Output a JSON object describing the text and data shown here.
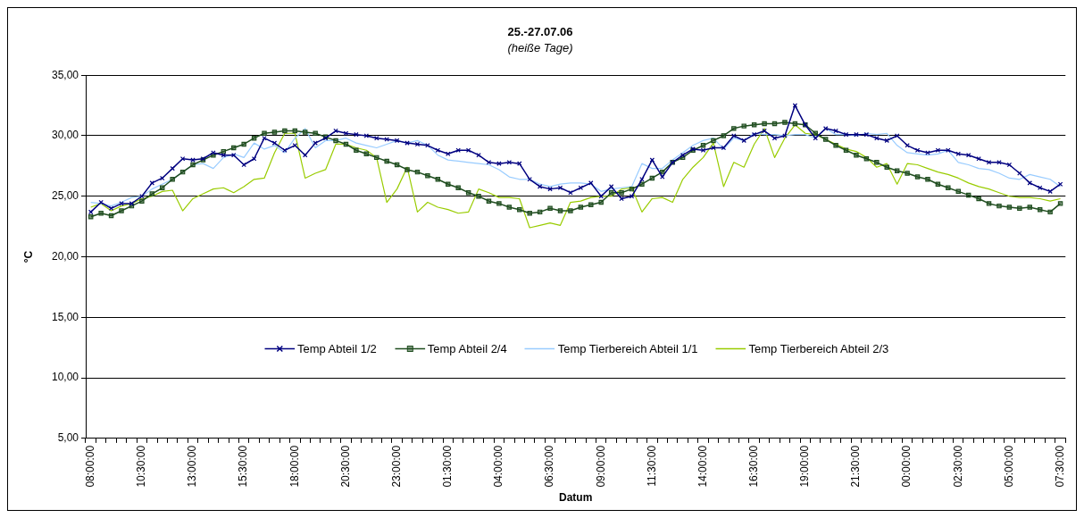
{
  "chart_data": {
    "type": "line",
    "title": "25.-27.07.06",
    "subtitle": "(heiße Tage)",
    "xlabel": "Datum",
    "ylabel": "°C",
    "categories": [
      "08:00:00",
      null,
      null,
      null,
      null,
      "10:30:00",
      null,
      null,
      null,
      null,
      "13:00:00",
      null,
      null,
      null,
      null,
      "15:30:00",
      null,
      null,
      null,
      null,
      "18:00:00",
      null,
      null,
      null,
      null,
      "20:30:00",
      null,
      null,
      null,
      null,
      "23:00:00",
      null,
      null,
      null,
      null,
      "01:30:00",
      null,
      null,
      null,
      null,
      "04:00:00",
      null,
      null,
      null,
      null,
      "06:30:00",
      null,
      null,
      null,
      null,
      "09:00:00",
      null,
      null,
      null,
      null,
      "11:30:00",
      null,
      null,
      null,
      null,
      "14:00:00",
      null,
      null,
      null,
      null,
      "16:30:00",
      null,
      null,
      null,
      null,
      "19:00:00",
      null,
      null,
      null,
      null,
      "21:30:00",
      null,
      null,
      null,
      null,
      "00:00:00",
      null,
      null,
      null,
      null,
      "02:30:00",
      null,
      null,
      null,
      null,
      "05:00:00",
      null,
      null,
      null,
      null,
      "07:30:00"
    ],
    "ylim": [
      5,
      35
    ],
    "yticks": [
      {
        "value": 5,
        "label": "5,00"
      },
      {
        "value": 10,
        "label": "10,00"
      },
      {
        "value": 15,
        "label": "15,00"
      },
      {
        "value": 20,
        "label": "20,00"
      },
      {
        "value": 25,
        "label": "25,00"
      },
      {
        "value": 30,
        "label": "30,00"
      },
      {
        "value": 35,
        "label": "35,00"
      }
    ],
    "grid": "y",
    "legend": "center",
    "series": [
      {
        "name": "Temp Abteil 1/2",
        "color": "#000080",
        "marker": "cross",
        "values": [
          23.7,
          24.5,
          24.0,
          24.4,
          24.4,
          25.0,
          26.1,
          26.5,
          27.3,
          28.1,
          28.0,
          28.1,
          28.6,
          28.4,
          28.4,
          27.6,
          28.1,
          29.8,
          29.4,
          28.8,
          29.2,
          28.4,
          29.4,
          29.8,
          30.4,
          30.2,
          30.1,
          30.0,
          29.8,
          29.7,
          29.6,
          29.4,
          29.3,
          29.2,
          28.8,
          28.5,
          28.8,
          28.8,
          28.4,
          27.8,
          27.7,
          27.8,
          27.7,
          26.4,
          25.8,
          25.6,
          25.7,
          25.3,
          25.7,
          26.1,
          25.0,
          25.8,
          24.8,
          25.0,
          26.4,
          28.0,
          26.6,
          27.8,
          28.4,
          28.9,
          28.8,
          29.0,
          29.0,
          30.0,
          29.6,
          30.1,
          30.4,
          29.8,
          30.0,
          32.5,
          30.9,
          29.8,
          30.6,
          30.4,
          30.1,
          30.1,
          30.1,
          29.8,
          29.6,
          30.0,
          29.2,
          28.8,
          28.6,
          28.8,
          28.8,
          28.5,
          28.4,
          28.1,
          27.8,
          27.8,
          27.6,
          26.9,
          26.1,
          25.7,
          25.4,
          26.0
        ]
      },
      {
        "name": "Temp Abteil 2/4",
        "color": "#1f4d1f",
        "marker": "square",
        "values": [
          23.3,
          23.6,
          23.4,
          23.8,
          24.2,
          24.6,
          25.2,
          25.7,
          26.4,
          27.0,
          27.6,
          28.0,
          28.4,
          28.7,
          29.0,
          29.3,
          29.8,
          30.2,
          30.3,
          30.4,
          30.4,
          30.3,
          30.2,
          29.9,
          29.6,
          29.3,
          28.8,
          28.5,
          28.2,
          27.9,
          27.6,
          27.2,
          27.0,
          26.7,
          26.4,
          26.0,
          25.7,
          25.3,
          25.0,
          24.6,
          24.4,
          24.1,
          23.9,
          23.6,
          23.7,
          24.0,
          23.8,
          23.8,
          24.1,
          24.3,
          24.5,
          25.3,
          25.3,
          25.6,
          26.0,
          26.5,
          27.0,
          27.8,
          28.2,
          28.8,
          29.2,
          29.6,
          30.0,
          30.6,
          30.8,
          30.9,
          31.0,
          31.0,
          31.1,
          31.0,
          30.9,
          30.2,
          29.7,
          29.2,
          28.8,
          28.4,
          28.1,
          27.8,
          27.4,
          27.1,
          26.9,
          26.6,
          26.4,
          26.0,
          25.7,
          25.4,
          25.1,
          24.8,
          24.4,
          24.2,
          24.1,
          24.0,
          24.1,
          23.9,
          23.7,
          24.4
        ]
      },
      {
        "name": "Temp Tierbereich Abteil 1/1",
        "color": "#99ccff",
        "marker": "none",
        "values": [
          24.5,
          24.4,
          24.2,
          24.5,
          24.9,
          25.0,
          25.6,
          26.0,
          26.4,
          27.0,
          27.6,
          27.7,
          27.3,
          28.2,
          28.5,
          28.2,
          29.4,
          28.9,
          29.2,
          28.6,
          29.8,
          30.6,
          29.0,
          29.6,
          29.6,
          29.8,
          29.4,
          29.2,
          29.0,
          29.3,
          29.6,
          29.4,
          29.6,
          29.2,
          28.4,
          28.0,
          27.9,
          27.8,
          27.7,
          27.6,
          27.2,
          26.6,
          26.4,
          26.4,
          26.0,
          25.8,
          26.0,
          26.1,
          26.1,
          26.0,
          25.4,
          25.6,
          25.7,
          25.8,
          27.7,
          27.3,
          27.3,
          28.0,
          28.6,
          29.2,
          29.6,
          29.8,
          28.9,
          29.8,
          29.6,
          30.2,
          30.1,
          30.1,
          30.0,
          30.1,
          30.1,
          29.8,
          30.6,
          30.1,
          30.1,
          30.0,
          30.2,
          30.1,
          30.2,
          29.2,
          28.6,
          28.5,
          28.4,
          28.5,
          28.8,
          27.8,
          27.6,
          27.3,
          27.2,
          26.9,
          26.5,
          26.4,
          26.8,
          26.6,
          26.4,
          25.8
        ]
      },
      {
        "name": "Temp Tierbereich Abteil 2/3",
        "color": "#99cc00",
        "marker": "none",
        "values": [
          24.1,
          24.4,
          23.8,
          24.2,
          24.4,
          24.8,
          25.0,
          25.4,
          25.5,
          23.8,
          24.8,
          25.2,
          25.6,
          25.7,
          25.3,
          25.8,
          26.4,
          26.5,
          28.6,
          30.2,
          30.2,
          26.5,
          26.9,
          27.2,
          29.3,
          29.3,
          29.0,
          28.8,
          28.2,
          24.5,
          25.6,
          27.4,
          23.7,
          24.5,
          24.1,
          23.9,
          23.6,
          23.7,
          25.6,
          25.3,
          24.9,
          24.9,
          24.8,
          22.4,
          22.6,
          22.8,
          22.6,
          24.5,
          24.6,
          24.9,
          25.0,
          25.0,
          25.6,
          25.7,
          23.7,
          24.8,
          24.9,
          24.5,
          26.4,
          27.4,
          28.2,
          29.4,
          25.8,
          27.8,
          27.4,
          29.3,
          30.6,
          28.2,
          29.8,
          30.9,
          30.2,
          30.1,
          29.7,
          29.3,
          28.9,
          28.7,
          28.2,
          27.4,
          27.7,
          26.0,
          27.7,
          27.6,
          27.3,
          27.0,
          26.8,
          26.5,
          26.1,
          25.8,
          25.6,
          25.3,
          25.0,
          24.9,
          24.9,
          24.8,
          24.6,
          24.8
        ]
      }
    ]
  }
}
